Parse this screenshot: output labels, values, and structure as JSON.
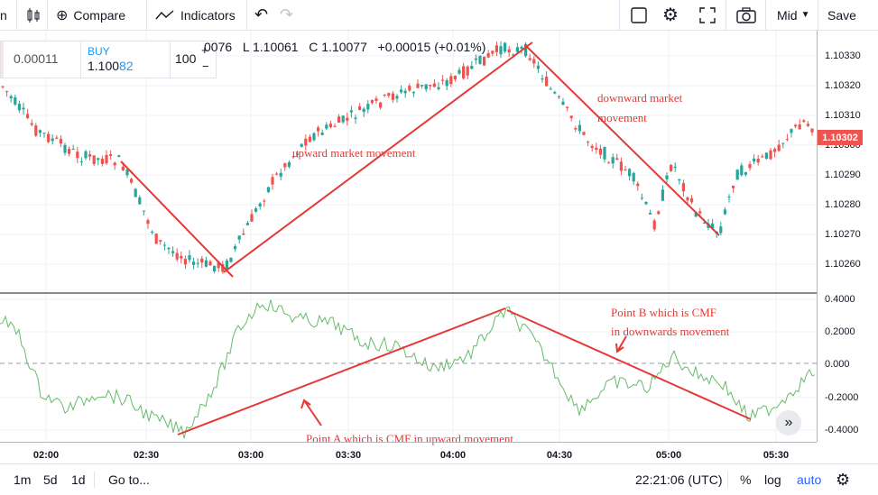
{
  "toolbar": {
    "left_cut": "n",
    "compare": "Compare",
    "indicators": "Indicators",
    "mid": "Mid",
    "save": "Save"
  },
  "order": {
    "spread": "0.00011",
    "buy_label": "BUY",
    "buy_price_main": "1.100",
    "buy_price_tail": "82",
    "qty": "100"
  },
  "ohlc": {
    "o": "0076",
    "l": "L 1.10061",
    "c": "C 1.10077",
    "change": "+0.00015 (+0.01%)"
  },
  "price_axis": [
    "1.10330",
    "1.10320",
    "1.10310",
    "1.10300",
    "1.10290",
    "1.10280",
    "1.10270",
    "1.10260"
  ],
  "current_price": "1.10302",
  "cmf_axis": [
    "0.4000",
    "0.2000",
    "0.000",
    "-0.2000",
    "-0.4000"
  ],
  "time_axis": [
    "02:00",
    "02:30",
    "03:00",
    "03:30",
    "04:00",
    "04:30",
    "05:00",
    "05:30"
  ],
  "annotations": {
    "upward": "upward market movement",
    "downward_1": "downward market",
    "downward_2": "movement",
    "point_b_1": "Point B which is CMF",
    "point_b_2": "in downwards movement",
    "point_a": "Point A which is CMF in upward movement"
  },
  "bottom": {
    "ranges": [
      "1m",
      "5d",
      "1d"
    ],
    "goto": "Go to...",
    "clock": "22:21:06 (UTC)",
    "percent": "%",
    "log": "log",
    "auto": "auto"
  },
  "colors": {
    "up": "#26a69a",
    "down": "#ef5350",
    "cmf": "#66bb6a",
    "annotation": "#e53935",
    "price_badge": "#ef5350",
    "auto": "#2962ff"
  }
}
